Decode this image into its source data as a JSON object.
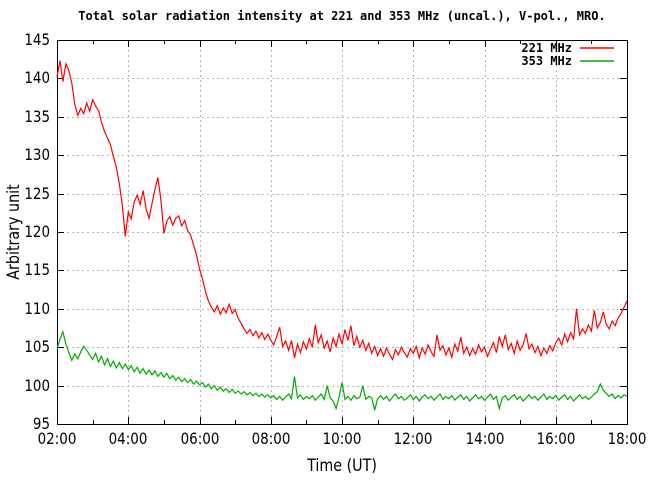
{
  "title": "Total solar radiation intensity at 221 and 353 MHz (uncal.), V-pol., MRO.",
  "colors": {
    "background": "#ffffff",
    "axis": "#000000",
    "grid": "#b4b4b4",
    "series_221": "#ff0000",
    "series_353": "#00aa00"
  },
  "chart_data": {
    "type": "line",
    "title": "Total solar radiation intensity at 221 and 353 MHz (uncal.), V-pol., MRO.",
    "xlabel": "Time (UT)",
    "ylabel": "Arbitrary unit",
    "xlim_hours": [
      2,
      18
    ],
    "ylim": [
      95,
      145
    ],
    "grid": "dashed",
    "legend_position": "top-right-inside",
    "x_ticks": [
      {
        "hour": 2,
        "label": "02:00"
      },
      {
        "hour": 4,
        "label": "04:00"
      },
      {
        "hour": 6,
        "label": "06:00"
      },
      {
        "hour": 8,
        "label": "08:00"
      },
      {
        "hour": 10,
        "label": "10:00"
      },
      {
        "hour": 12,
        "label": "12:00"
      },
      {
        "hour": 14,
        "label": "14:00"
      },
      {
        "hour": 16,
        "label": "16:00"
      },
      {
        "hour": 18,
        "label": "18:00"
      }
    ],
    "y_ticks": [
      95,
      100,
      105,
      110,
      115,
      120,
      125,
      130,
      135,
      140,
      145
    ],
    "series": [
      {
        "name": "221 MHz",
        "color": "#ff0000",
        "t_start_hour": 2,
        "t_step_minutes": 5,
        "values": [
          140.2,
          142.3,
          139.6,
          141.9,
          141.0,
          139.4,
          136.6,
          135.2,
          136.1,
          135.4,
          136.8,
          135.7,
          137.2,
          136.4,
          135.8,
          134.3,
          133.1,
          132.2,
          131.4,
          129.8,
          128.4,
          126.3,
          123.5,
          119.4,
          122.6,
          121.7,
          123.9,
          124.8,
          123.6,
          125.4,
          123.0,
          121.8,
          123.7,
          125.6,
          127.1,
          124.2,
          119.8,
          121.4,
          122.0,
          120.9,
          121.8,
          122.1,
          120.8,
          121.5,
          120.2,
          119.6,
          118.3,
          117.0,
          115.2,
          113.9,
          112.3,
          111.0,
          110.2,
          109.6,
          110.4,
          109.3,
          110.1,
          109.5,
          110.6,
          109.4,
          109.9,
          108.8,
          108.1,
          107.4,
          106.8,
          107.3,
          106.5,
          107.1,
          106.2,
          106.9,
          106.0,
          106.7,
          105.9,
          105.3,
          106.4,
          107.6,
          105.1,
          105.8,
          104.6,
          105.9,
          103.6,
          105.4,
          104.3,
          105.7,
          104.8,
          106.1,
          105.0,
          107.9,
          105.6,
          106.6,
          104.9,
          105.8,
          104.4,
          106.2,
          105.1,
          106.7,
          105.4,
          107.3,
          105.9,
          107.8,
          105.2,
          106.4,
          105.0,
          105.9,
          104.6,
          105.5,
          104.2,
          105.1,
          103.9,
          104.8,
          103.8,
          104.9,
          104.1,
          103.4,
          104.7,
          104.0,
          105.0,
          104.3,
          103.7,
          104.8,
          104.2,
          105.1,
          103.6,
          104.9,
          104.1,
          105.3,
          104.4,
          103.8,
          106.6,
          104.6,
          105.2,
          104.0,
          104.9,
          103.7,
          105.4,
          104.5,
          106.3,
          104.2,
          105.0,
          103.9,
          104.8,
          104.1,
          105.3,
          104.4,
          105.0,
          103.8,
          104.7,
          105.6,
          104.3,
          106.4,
          105.1,
          106.6,
          104.7,
          105.5,
          104.2,
          105.8,
          104.6,
          105.3,
          106.8,
          104.8,
          105.4,
          104.3,
          105.1,
          103.9,
          104.9,
          104.2,
          105.2,
          104.5,
          105.6,
          106.2,
          105.3,
          106.7,
          105.7,
          106.9,
          106.1,
          110.0,
          106.6,
          107.4,
          106.8,
          107.9,
          107.1,
          109.8,
          107.5,
          108.2,
          109.6,
          108.0,
          107.4,
          108.4,
          107.8,
          108.8,
          109.4,
          110.2,
          111.0
        ]
      },
      {
        "name": "353 MHz",
        "color": "#00aa00",
        "t_start_hour": 2,
        "t_step_minutes": 5,
        "values": [
          104.8,
          106.0,
          107.0,
          105.4,
          104.3,
          103.3,
          104.1,
          103.5,
          104.4,
          105.1,
          104.6,
          104.0,
          103.4,
          104.2,
          103.1,
          103.8,
          102.7,
          103.5,
          102.5,
          103.2,
          102.3,
          103.0,
          102.2,
          102.8,
          102.1,
          102.6,
          101.8,
          102.4,
          101.6,
          102.2,
          101.5,
          102.0,
          101.4,
          101.9,
          101.2,
          101.7,
          101.1,
          101.6,
          100.9,
          101.3,
          100.7,
          101.1,
          100.5,
          100.9,
          100.4,
          100.8,
          100.2,
          100.6,
          100.1,
          100.4,
          99.8,
          100.2,
          99.6,
          100.0,
          99.4,
          99.8,
          99.3,
          99.6,
          99.1,
          99.5,
          99.0,
          99.3,
          98.9,
          99.2,
          98.8,
          99.1,
          98.7,
          99.0,
          98.6,
          98.9,
          98.5,
          98.8,
          98.4,
          98.7,
          98.2,
          98.6,
          98.1,
          98.5,
          98.9,
          98.3,
          101.2,
          98.4,
          98.8,
          98.2,
          98.6,
          98.3,
          98.7,
          98.1,
          98.5,
          98.9,
          98.2,
          100.0,
          98.4,
          98.0,
          97.0,
          98.5,
          100.4,
          98.2,
          98.6,
          98.1,
          98.7,
          98.3,
          98.5,
          100.0,
          98.2,
          98.6,
          98.4,
          96.8,
          98.3,
          98.7,
          98.2,
          98.6,
          98.0,
          98.5,
          98.9,
          98.3,
          98.6,
          98.1,
          98.4,
          98.8,
          98.2,
          98.6,
          98.0,
          98.5,
          98.8,
          98.3,
          98.6,
          98.1,
          98.5,
          98.9,
          98.2,
          98.6,
          98.3,
          98.7,
          98.1,
          98.5,
          98.8,
          98.2,
          98.6,
          98.0,
          98.4,
          98.8,
          98.3,
          98.6,
          98.1,
          98.5,
          98.9,
          98.2,
          98.6,
          97.0,
          98.4,
          98.7,
          98.1,
          98.5,
          98.8,
          98.2,
          98.6,
          98.0,
          98.4,
          98.8,
          98.3,
          98.6,
          98.1,
          98.5,
          98.9,
          98.2,
          98.6,
          98.3,
          98.7,
          98.1,
          98.5,
          98.8,
          98.2,
          98.6,
          98.0,
          98.4,
          98.8,
          98.3,
          98.6,
          98.2,
          98.5,
          98.9,
          99.2,
          100.2,
          99.4,
          99.0,
          98.6,
          98.9,
          98.3,
          98.7,
          98.4,
          98.8,
          98.6
        ]
      }
    ]
  }
}
